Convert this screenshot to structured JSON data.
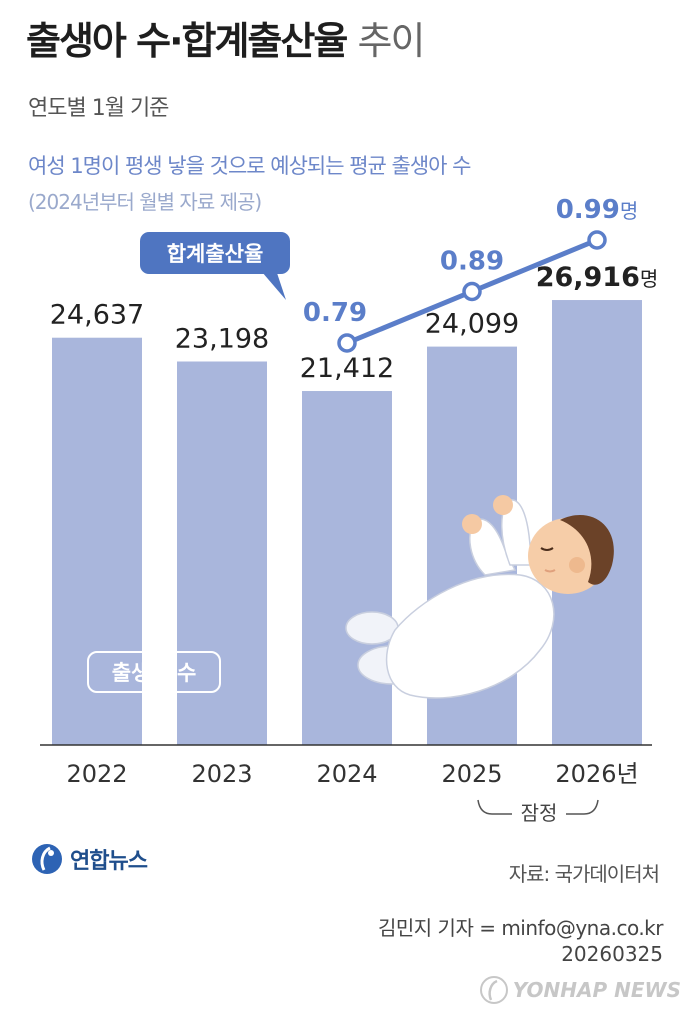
{
  "header": {
    "title_main": "출생아 수·합계출산율",
    "title_light": "추이",
    "subtitle": "연도별 1월 기준",
    "rate_description": "여성 1명이 평생 낳을 것으로 예상되는 평균 출생아 수",
    "rate_note": "(2024년부터 월별 자료 제공)"
  },
  "chart_data": {
    "type": "bar",
    "categories": [
      "2022",
      "2023",
      "2024",
      "2025",
      "2026년"
    ],
    "series": [
      {
        "name": "출생아 수",
        "type": "bar",
        "values": [
          24637,
          23198,
          21412,
          24099,
          26916
        ],
        "value_labels": [
          "24,637",
          "23,198",
          "21,412",
          "24,099",
          "26,916"
        ],
        "last_unit": "명",
        "color": "#a9b6dc"
      },
      {
        "name": "합계출산율",
        "type": "line",
        "x": [
          "2024",
          "2025",
          "2026년"
        ],
        "values": [
          0.79,
          0.89,
          0.99
        ],
        "value_labels": [
          "0.79",
          "0.89",
          "0.99"
        ],
        "last_unit": "명",
        "color": "#5b7ec9"
      }
    ],
    "provisional_label": "잠정",
    "provisional_categories": [
      "2025",
      "2026년"
    ]
  },
  "footer": {
    "source": "자료: 국가데이터처",
    "reporter": "김민지 기자 = minfo@yna.co.kr",
    "date": "20260325",
    "logo_text": "연합뉴스",
    "watermark_text": "YONHAP NEWS"
  },
  "colors": {
    "bar": "#a9b6dc",
    "line": "#5b7ec9",
    "axis": "#333333"
  }
}
